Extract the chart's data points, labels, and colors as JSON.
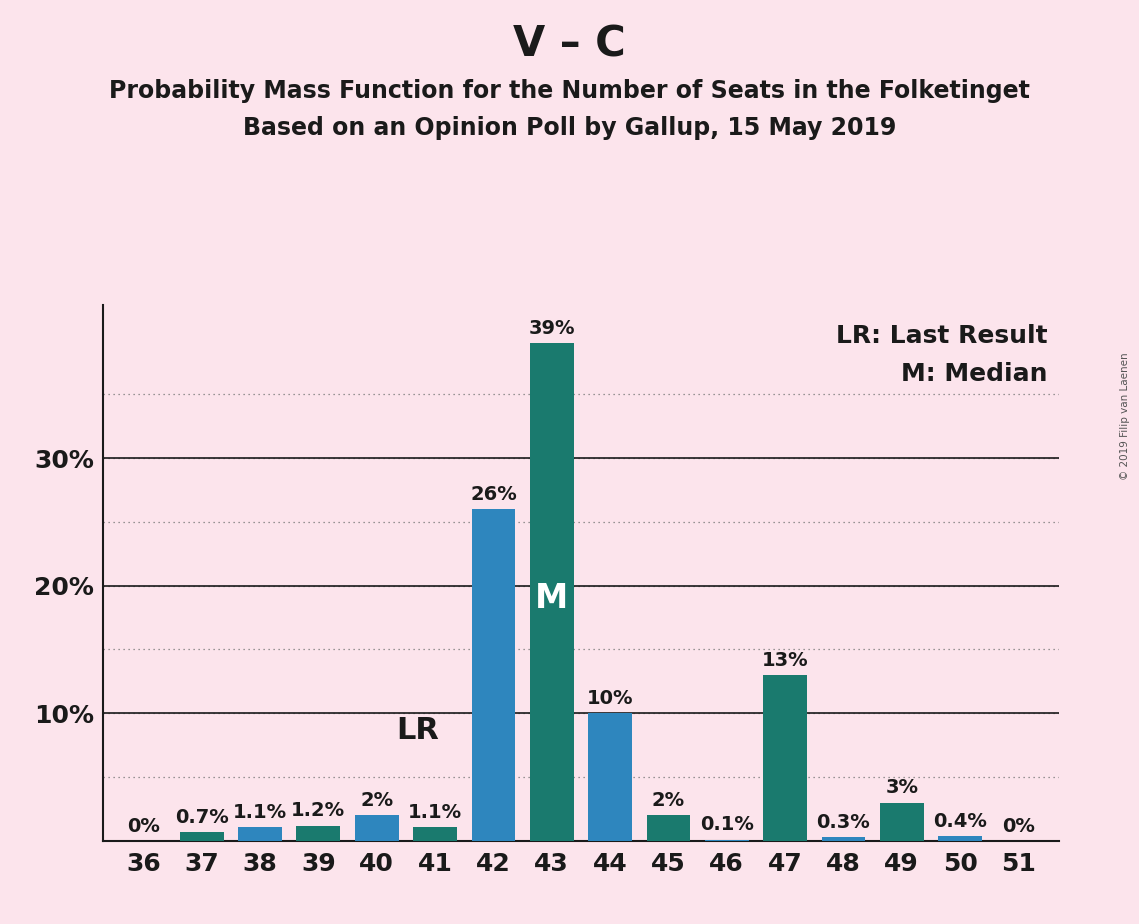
{
  "title_main": "V – C",
  "title_sub1": "Probability Mass Function for the Number of Seats in the Folketinget",
  "title_sub2": "Based on an Opinion Poll by Gallup, 15 May 2019",
  "copyright": "© 2019 Filip van Laenen",
  "seats": [
    36,
    37,
    38,
    39,
    40,
    41,
    42,
    43,
    44,
    45,
    46,
    47,
    48,
    49,
    50,
    51
  ],
  "values": [
    0.0,
    0.7,
    1.1,
    1.2,
    2.0,
    1.1,
    26.0,
    39.0,
    10.0,
    2.0,
    0.1,
    13.0,
    0.3,
    3.0,
    0.4,
    0.0
  ],
  "labels": [
    "0%",
    "0.7%",
    "1.1%",
    "1.2%",
    "2%",
    "1.1%",
    "26%",
    "39%",
    "10%",
    "2%",
    "0.1%",
    "13%",
    "0.3%",
    "3%",
    "0.4%",
    "0%"
  ],
  "colors": [
    "#1a7a6e",
    "#1a7a6e",
    "#2e86be",
    "#1a7a6e",
    "#2e86be",
    "#1a7a6e",
    "#2e86be",
    "#1a7a6e",
    "#2e86be",
    "#1a7a6e",
    "#2e86be",
    "#1a7a6e",
    "#2e86be",
    "#1a7a6e",
    "#2e86be",
    "#1a7a6e"
  ],
  "median_seat": 43,
  "lr_seat": 42,
  "lr_label": "LR",
  "median_label": "M",
  "legend_lr": "LR: Last Result",
  "legend_m": "M: Median",
  "background_color": "#fce4ec",
  "ylim": [
    0,
    42
  ],
  "grid_ticks": [
    5,
    10,
    15,
    20,
    25,
    30,
    35
  ],
  "solid_lines": [
    10,
    20,
    30
  ],
  "axis_line_color": "#1a1a1a",
  "title_fontsize": 30,
  "subtitle_fontsize": 17,
  "tick_fontsize": 18,
  "label_fontsize": 14,
  "annotation_fontsize": 22,
  "legend_fontsize": 18
}
